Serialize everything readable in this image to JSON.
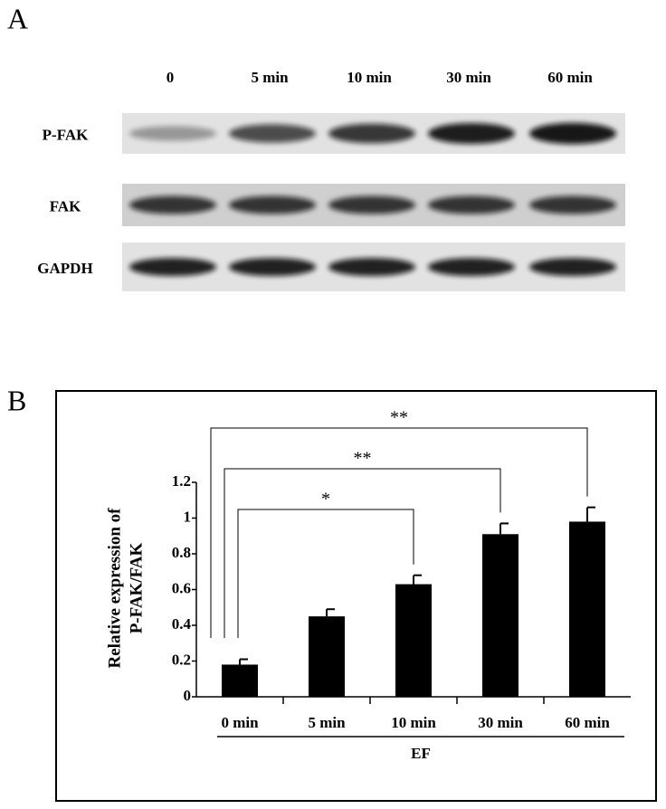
{
  "panel_a": {
    "label": "A",
    "lanes": [
      "0",
      "5 min",
      "10 min",
      "30 min",
      "60 min"
    ],
    "rows": [
      "P-FAK",
      "FAK",
      "GAPDH"
    ]
  },
  "chart_data": {
    "type": "bar",
    "panel_label": "B",
    "ylabel": [
      "Relative expression of",
      "P-FAK/FAK"
    ],
    "xlabel": "EF",
    "categories": [
      "0 min",
      "5 min",
      "10 min",
      "30 min",
      "60 min"
    ],
    "values": [
      0.18,
      0.45,
      0.63,
      0.91,
      0.98
    ],
    "errors": [
      0.03,
      0.04,
      0.05,
      0.06,
      0.08
    ],
    "color": "#000000",
    "ylim": [
      0,
      1.2
    ],
    "yticks": [
      0,
      0.2,
      0.4,
      0.6,
      0.8,
      1,
      1.2
    ],
    "significance": [
      {
        "from": 0,
        "to": 2,
        "label": "*"
      },
      {
        "from": 0,
        "to": 3,
        "label": "**"
      },
      {
        "from": 0,
        "to": 4,
        "label": "**"
      }
    ]
  }
}
